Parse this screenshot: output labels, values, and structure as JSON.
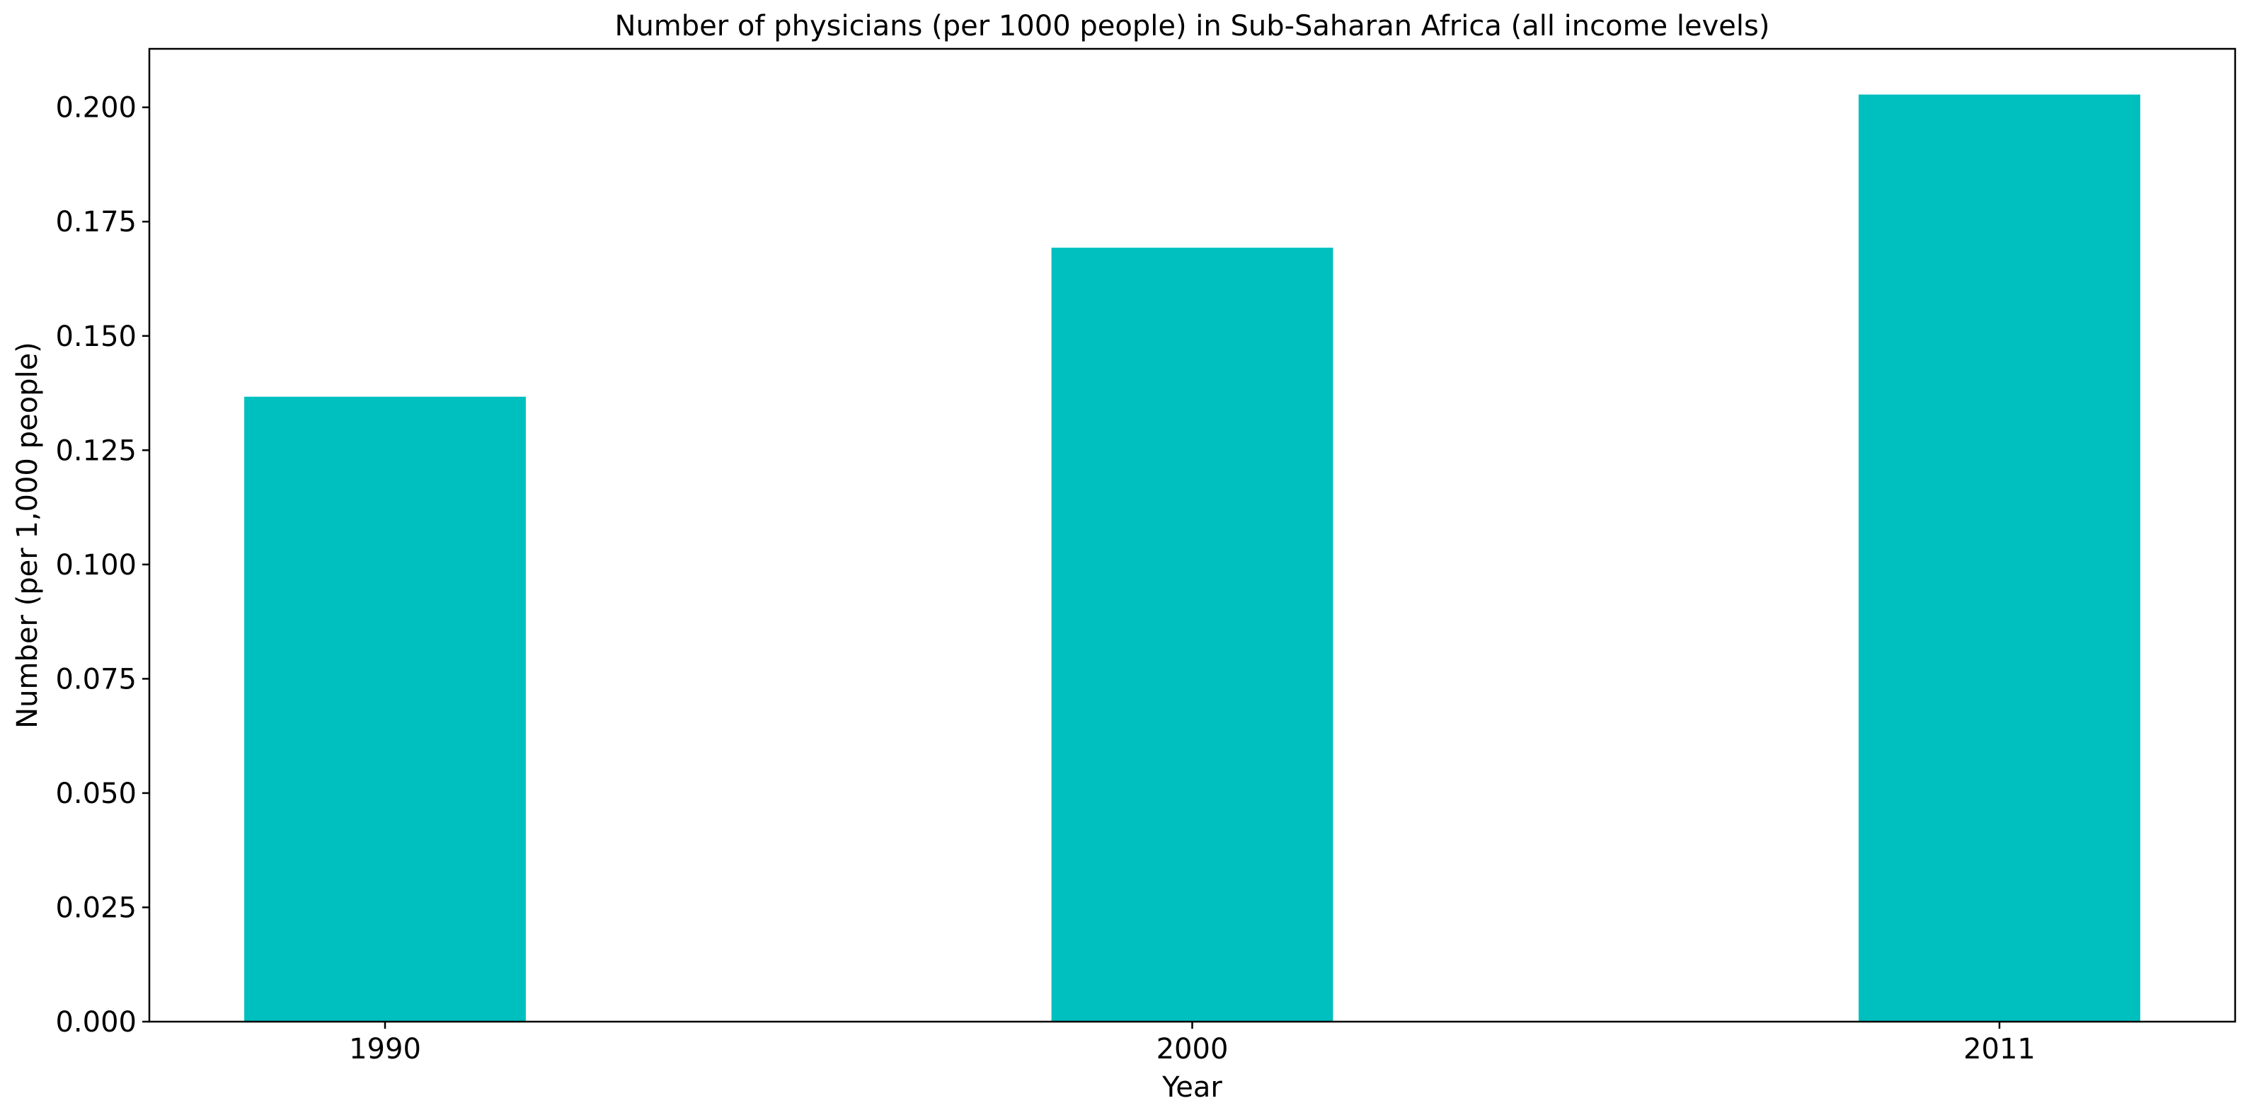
{
  "chart_data": {
    "type": "bar",
    "title": "Number of physicians (per 1000 people) in Sub-Saharan Africa (all income levels)",
    "xlabel": "Year",
    "ylabel": "Number (per 1,000 people)",
    "categories": [
      "1990",
      "2000",
      "2011"
    ],
    "values": [
      0.1367,
      0.1693,
      0.2028
    ],
    "ylim": [
      0,
      0.2128
    ],
    "yticks": [
      0.0,
      0.025,
      0.05,
      0.075,
      0.1,
      0.125,
      0.15,
      0.175,
      0.2
    ],
    "ytick_labels": [
      "0.000",
      "0.025",
      "0.050",
      "0.075",
      "0.100",
      "0.125",
      "0.150",
      "0.175",
      "0.200"
    ],
    "bar_color": "#00bfbf",
    "grid": false,
    "legend": "none"
  }
}
